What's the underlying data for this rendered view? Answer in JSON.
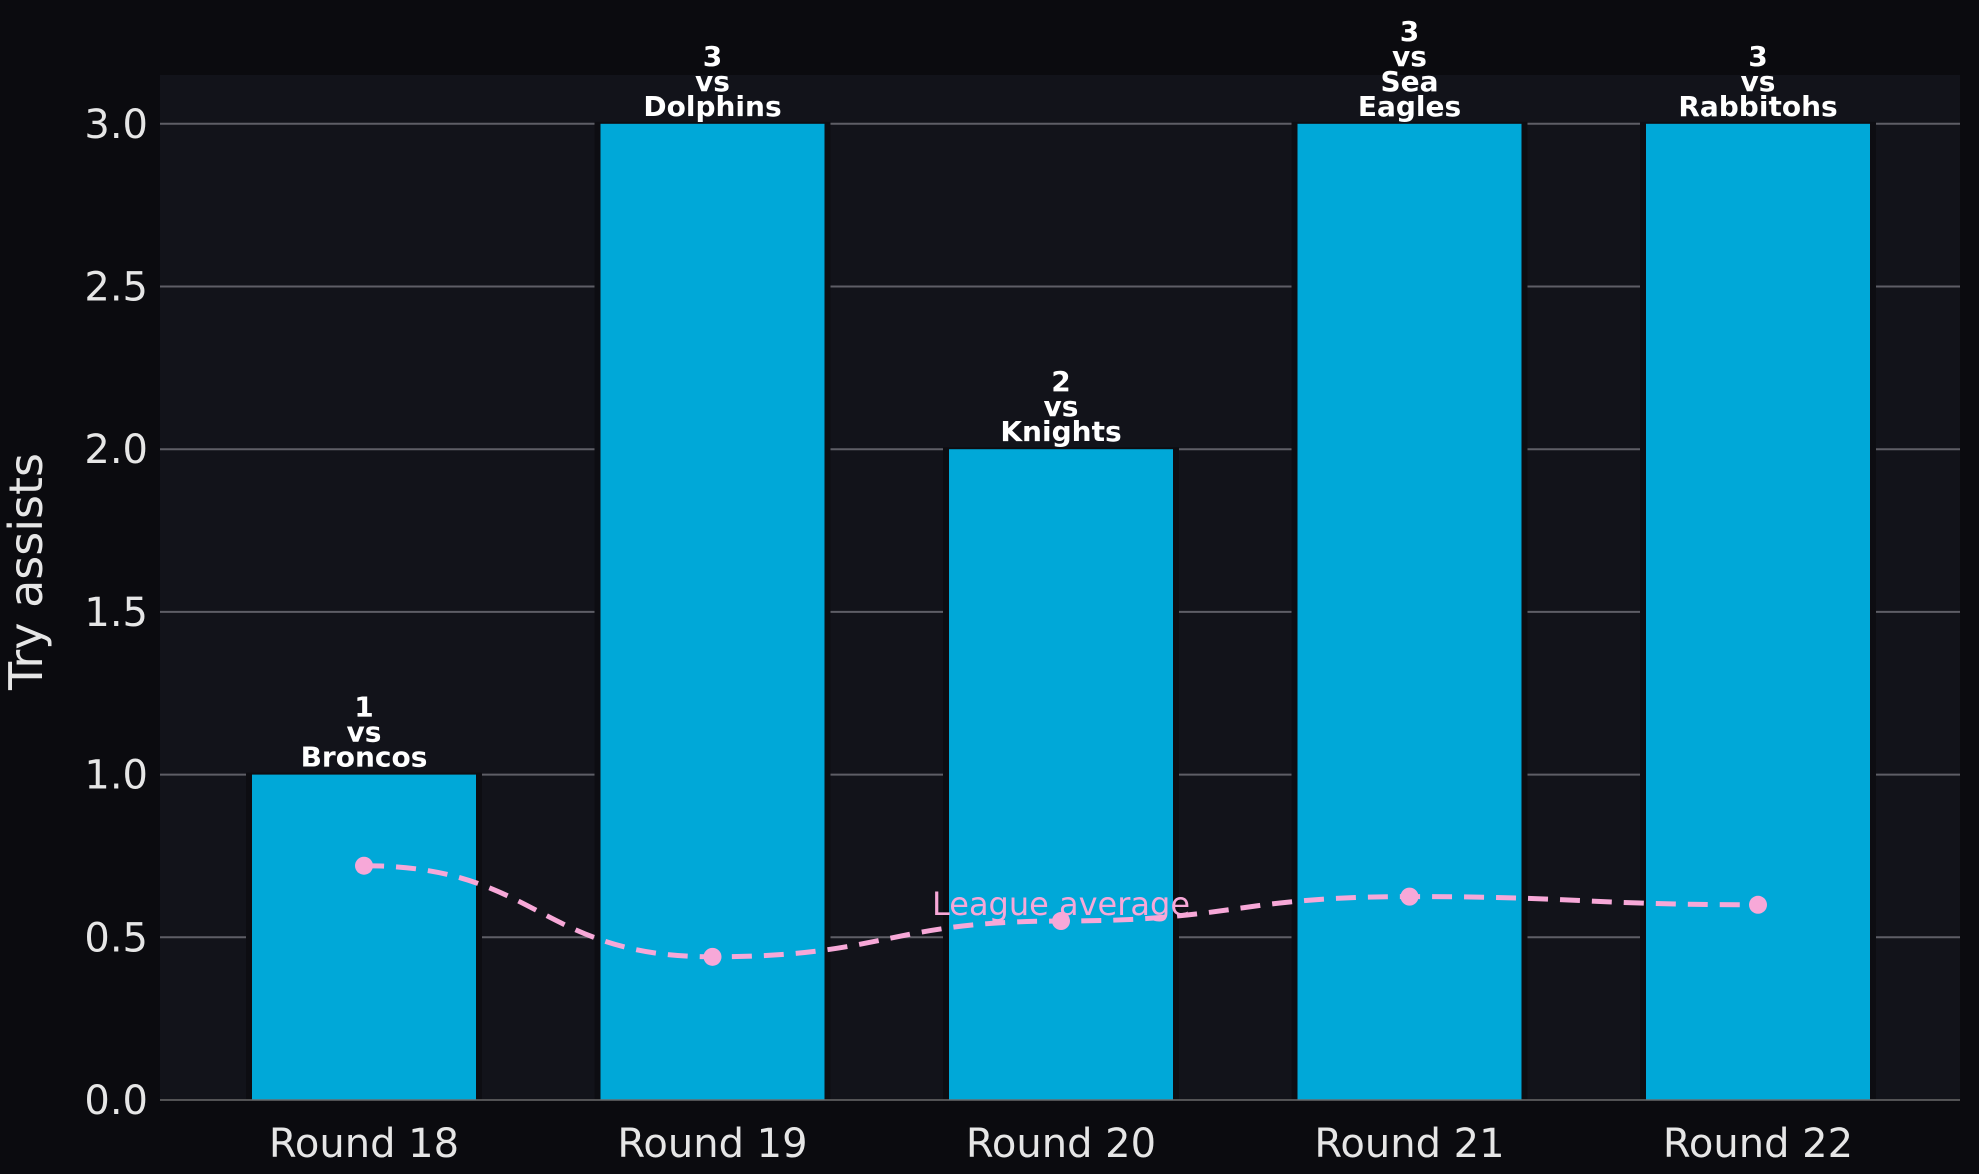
{
  "chart_data": {
    "type": "bar",
    "categories": [
      "Round 18",
      "Round 19",
      "Round 20",
      "Round 21",
      "Round 22"
    ],
    "series": [
      {
        "values": [
          1,
          3,
          2,
          3,
          3
        ],
        "color": "#00a8d8",
        "bar_labels": [
          [
            "1",
            "vs",
            "Broncos"
          ],
          [
            "3",
            "vs",
            "Dolphins"
          ],
          [
            "2",
            "vs",
            "Knights"
          ],
          [
            "3",
            "vs",
            "Sea",
            "Eagles"
          ],
          [
            "3",
            "vs",
            "Rabbitohs"
          ]
        ]
      },
      {
        "type": "line",
        "style": "dashed",
        "values": [
          0.72,
          0.44,
          0.55,
          0.625,
          0.6
        ],
        "color": "#f7a8d8"
      }
    ],
    "annotations": [
      {
        "text": "League average",
        "x": "Round 20",
        "y": 0.55
      }
    ],
    "title": "",
    "xlabel": "",
    "ylabel": "Try assists",
    "ylim": [
      0,
      3.15
    ],
    "yticks": [
      "0.0",
      "0.5",
      "1.0",
      "1.5",
      "2.0",
      "2.5",
      "3.0"
    ],
    "grid": "horizontal",
    "background": "#12131a",
    "figure_background": "#0b0b0f"
  }
}
